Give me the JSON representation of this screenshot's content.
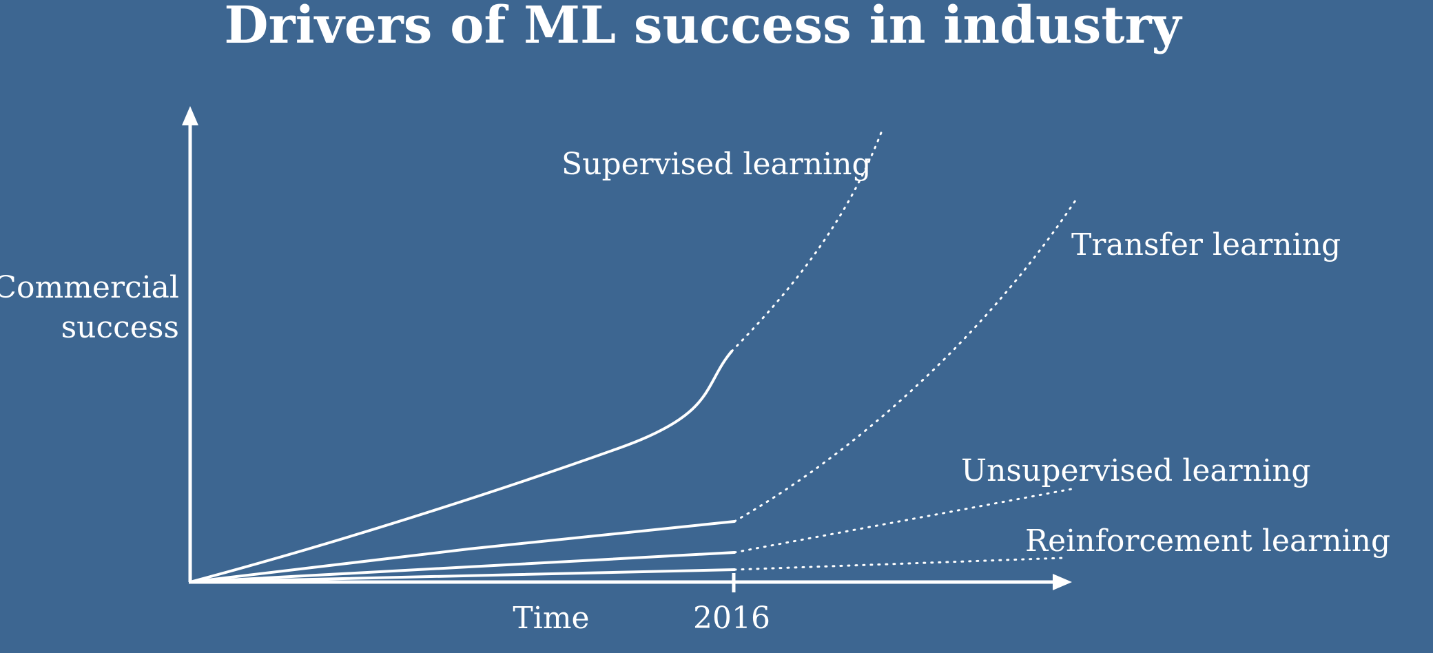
{
  "title": "Drivers of ML success in industry",
  "axes": {
    "y_label_line1": "Commercial",
    "y_label_line2": "success",
    "x_label": "Time",
    "x_tick_label": "2016"
  },
  "curves": [
    {
      "id": "supervised",
      "label": "Supervised learning"
    },
    {
      "id": "transfer",
      "label": "Transfer learning"
    },
    {
      "id": "unsupervised",
      "label": "Unsupervised learning"
    },
    {
      "id": "reinforcement",
      "label": "Reinforcement learning"
    }
  ],
  "colors": {
    "background": "#3d6691",
    "foreground": "#ffffff"
  }
}
